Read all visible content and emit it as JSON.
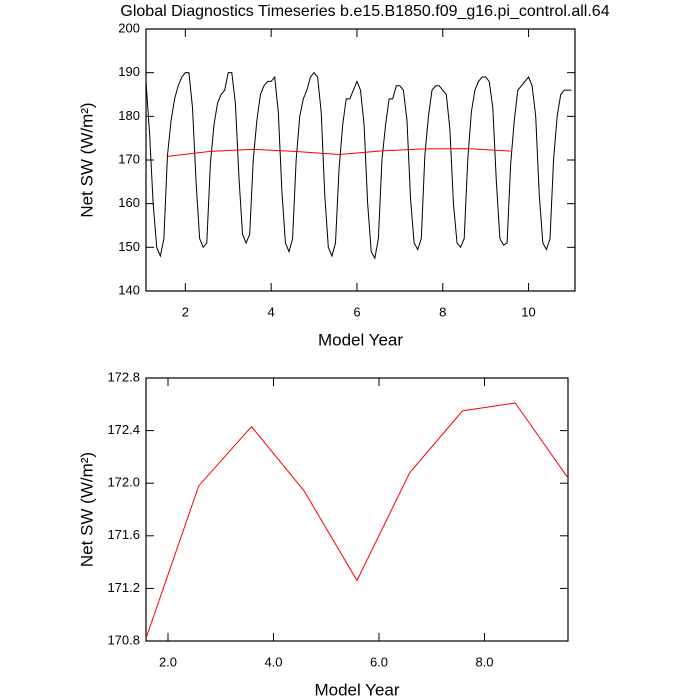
{
  "chart_data": [
    {
      "type": "line",
      "title": "Global Diagnostics Timeseries b.e15.B1850.f09_g16.pi_control.all.64",
      "x_label": "Model Year",
      "y_label": "Net SW (W/m²)",
      "xlim": [
        1.083,
        11.083
      ],
      "xticks": [
        2,
        4,
        6,
        8,
        10
      ],
      "ylim": [
        140,
        200
      ],
      "yticks": [
        140,
        150,
        160,
        170,
        180,
        190,
        200
      ],
      "series": [
        {
          "color": "#000000",
          "x": [
            1.083,
            1.167,
            1.25,
            1.333,
            1.417,
            1.5,
            1.583,
            1.667,
            1.75,
            1.833,
            1.917,
            2.0,
            2.083,
            2.167,
            2.25,
            2.333,
            2.417,
            2.5,
            2.583,
            2.667,
            2.75,
            2.833,
            2.917,
            3.0,
            3.083,
            3.167,
            3.25,
            3.333,
            3.417,
            3.5,
            3.583,
            3.667,
            3.75,
            3.833,
            3.917,
            4.0,
            4.083,
            4.167,
            4.25,
            4.333,
            4.417,
            4.5,
            4.583,
            4.667,
            4.75,
            4.833,
            4.917,
            5.0,
            5.083,
            5.167,
            5.25,
            5.333,
            5.417,
            5.5,
            5.583,
            5.667,
            5.75,
            5.833,
            5.917,
            6.0,
            6.083,
            6.167,
            6.25,
            6.333,
            6.417,
            6.5,
            6.583,
            6.667,
            6.75,
            6.833,
            6.917,
            7.0,
            7.083,
            7.167,
            7.25,
            7.333,
            7.417,
            7.5,
            7.583,
            7.667,
            7.75,
            7.833,
            7.917,
            8.0,
            8.083,
            8.167,
            8.25,
            8.333,
            8.417,
            8.5,
            8.583,
            8.667,
            8.75,
            8.833,
            8.917,
            9.0,
            9.083,
            9.167,
            9.25,
            9.333,
            9.417,
            9.5,
            9.583,
            9.667,
            9.75,
            9.833,
            9.917,
            10.0,
            10.083,
            10.167,
            10.25,
            10.333,
            10.417,
            10.5,
            10.583,
            10.667,
            10.75,
            10.833,
            10.917,
            11.0
          ],
          "values": [
            188,
            176,
            160,
            150,
            148,
            152,
            171,
            179,
            184,
            187,
            189,
            190,
            190,
            182,
            165,
            152,
            150,
            151,
            169,
            178,
            183,
            185,
            186,
            190,
            190,
            183,
            166,
            153,
            151,
            153,
            170,
            179,
            185,
            187,
            188,
            188,
            189,
            181,
            163,
            151,
            149,
            152,
            170,
            180,
            184,
            186,
            189,
            190,
            189,
            181,
            162,
            150,
            148,
            151,
            168,
            178,
            184,
            184,
            186,
            188,
            186,
            178,
            160,
            149,
            147.5,
            152,
            170,
            178,
            184,
            184,
            187,
            187,
            186,
            179,
            161,
            151,
            149.5,
            152,
            171,
            180,
            186,
            187,
            187,
            186,
            185,
            177,
            160,
            151,
            150,
            152,
            170,
            181,
            186,
            188,
            189,
            189,
            188,
            182,
            165,
            152,
            150.5,
            151,
            169,
            179,
            186,
            187,
            188,
            189,
            187,
            180,
            162,
            151,
            149.5,
            152,
            170,
            180,
            185,
            186,
            186,
            186
          ]
        },
        {
          "color": "#ff0000",
          "x": [
            1.583,
            2.583,
            3.583,
            4.583,
            5.583,
            6.583,
            7.583,
            8.583,
            9.583
          ],
          "values": [
            170.82,
            171.98,
            172.43,
            171.94,
            171.26,
            172.08,
            172.55,
            172.61,
            172.04
          ]
        }
      ]
    },
    {
      "type": "line",
      "x_label": "Model Year",
      "y_label": "Net SW (W/m²)",
      "xlim": [
        1.583,
        9.583
      ],
      "xticks": [
        {
          "value": 2,
          "label": "2.0"
        },
        {
          "value": 4,
          "label": "4.0"
        },
        {
          "value": 6,
          "label": "6.0"
        },
        {
          "value": 8,
          "label": "8.0"
        }
      ],
      "ylim": [
        170.8,
        172.8
      ],
      "yticks": [
        170.8,
        171.2,
        171.6,
        {
          "value": 172,
          "label": "172.0"
        },
        172.4,
        172.8
      ],
      "series": [
        {
          "color": "#ff0000",
          "x": [
            1.583,
            2.583,
            3.583,
            4.583,
            5.583,
            6.583,
            7.583,
            8.583,
            9.583
          ],
          "values": [
            170.82,
            171.98,
            172.43,
            171.94,
            171.26,
            172.08,
            172.55,
            172.61,
            172.04
          ]
        }
      ]
    }
  ]
}
